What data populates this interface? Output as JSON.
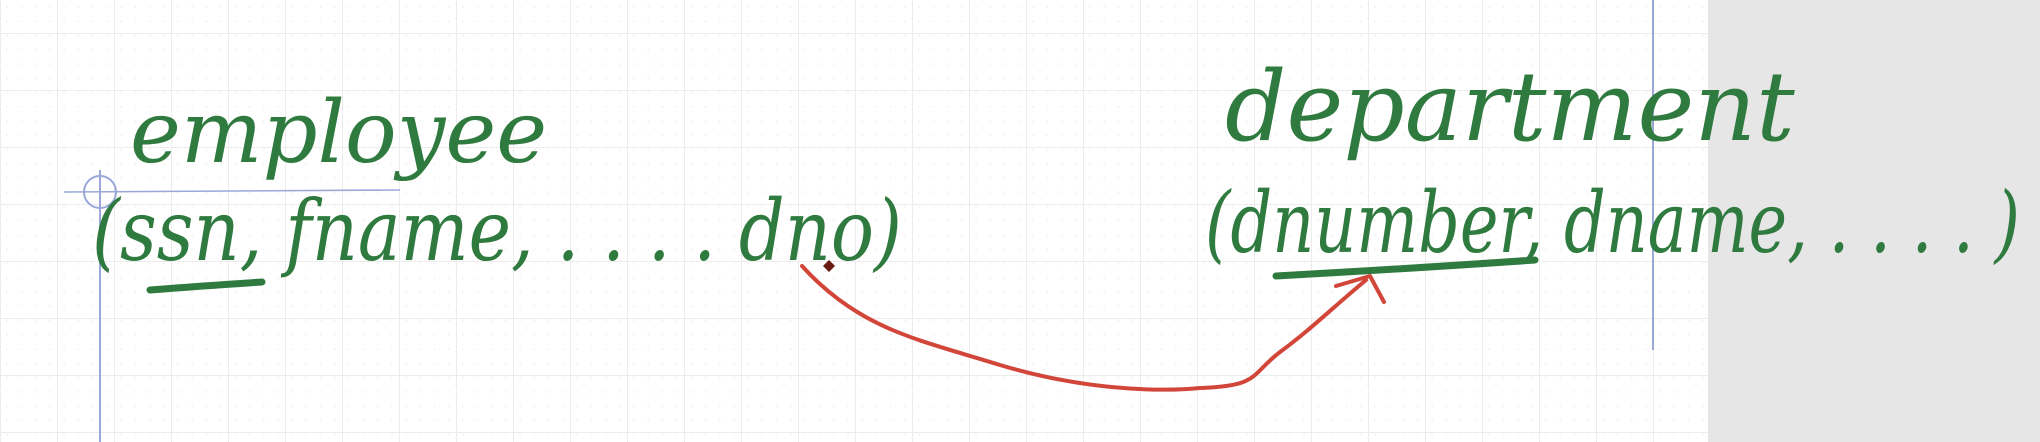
{
  "diagram": {
    "employee": {
      "name": "employee",
      "attributes_text": "(ssn, fname, . . . . dno)",
      "key_attribute": "ssn",
      "foreign_key": "dno"
    },
    "department": {
      "name": "department",
      "attributes_text": "(dnumber, dname, . . . . )",
      "key_attribute": "dnumber"
    },
    "colors": {
      "ink": "#2f7a3e",
      "arrow": "#d2463a",
      "guide": "#9aa8d8",
      "panel": "#e6e6e6"
    }
  }
}
